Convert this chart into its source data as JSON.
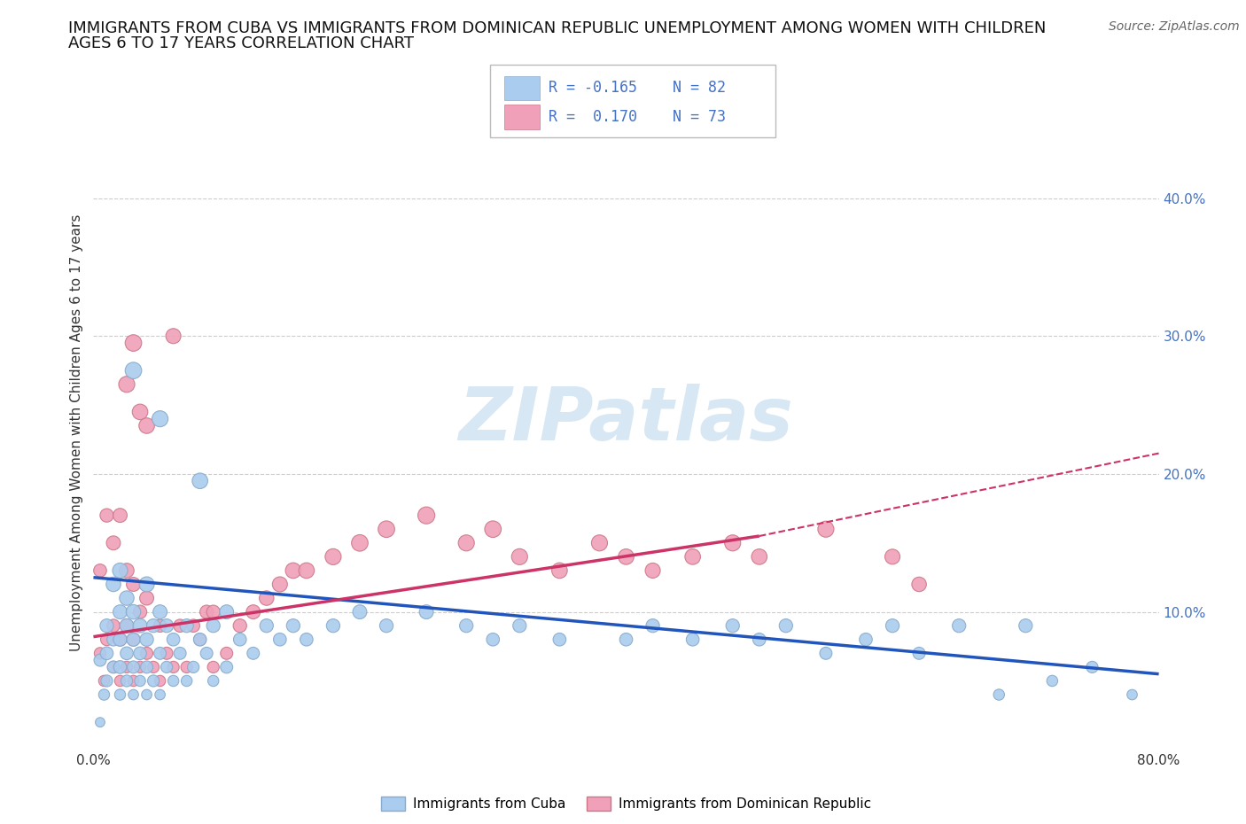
{
  "title_line1": "IMMIGRANTS FROM CUBA VS IMMIGRANTS FROM DOMINICAN REPUBLIC UNEMPLOYMENT AMONG WOMEN WITH CHILDREN",
  "title_line2": "AGES 6 TO 17 YEARS CORRELATION CHART",
  "source_text": "Source: ZipAtlas.com",
  "ylabel": "Unemployment Among Women with Children Ages 6 to 17 years",
  "xlim": [
    0.0,
    0.8
  ],
  "ylim": [
    0.0,
    0.46
  ],
  "xticks": [
    0.0,
    0.1,
    0.2,
    0.3,
    0.4,
    0.5,
    0.6,
    0.7,
    0.8
  ],
  "xticklabels": [
    "0.0%",
    "",
    "",
    "",
    "",
    "",
    "",
    "",
    "80.0%"
  ],
  "yticks_right": [
    0.1,
    0.2,
    0.3,
    0.4
  ],
  "ytick_labels_right": [
    "10.0%",
    "20.0%",
    "30.0%",
    "40.0%"
  ],
  "grid_color": "#cccccc",
  "background_color": "#ffffff",
  "watermark_text": "ZIPatlas",
  "cuba_color": "#aaccee",
  "cuba_color_edge": "#88aacc",
  "dr_color": "#f0a0b8",
  "dr_color_edge": "#cc7788",
  "cuba_line_color": "#2255bb",
  "dr_line_color": "#cc3366",
  "cuba_reg": [
    0.0,
    0.8,
    0.125,
    0.055
  ],
  "dr_reg_solid": [
    0.0,
    0.5,
    0.082,
    0.155
  ],
  "dr_reg_dash": [
    0.5,
    0.8,
    0.155,
    0.215
  ],
  "cuba_scatter_x": [
    0.005,
    0.005,
    0.008,
    0.01,
    0.01,
    0.01,
    0.015,
    0.015,
    0.015,
    0.02,
    0.02,
    0.02,
    0.02,
    0.02,
    0.025,
    0.025,
    0.025,
    0.025,
    0.03,
    0.03,
    0.03,
    0.03,
    0.035,
    0.035,
    0.035,
    0.04,
    0.04,
    0.04,
    0.04,
    0.045,
    0.045,
    0.05,
    0.05,
    0.05,
    0.055,
    0.055,
    0.06,
    0.06,
    0.065,
    0.07,
    0.07,
    0.075,
    0.08,
    0.085,
    0.09,
    0.09,
    0.1,
    0.1,
    0.11,
    0.12,
    0.13,
    0.14,
    0.15,
    0.16,
    0.18,
    0.2,
    0.22,
    0.25,
    0.28,
    0.3,
    0.32,
    0.35,
    0.4,
    0.42,
    0.45,
    0.48,
    0.5,
    0.52,
    0.55,
    0.58,
    0.6,
    0.62,
    0.65,
    0.68,
    0.7,
    0.72,
    0.75,
    0.78,
    0.03,
    0.05,
    0.08
  ],
  "cuba_scatter_y": [
    0.065,
    0.02,
    0.04,
    0.07,
    0.09,
    0.05,
    0.06,
    0.08,
    0.12,
    0.04,
    0.06,
    0.08,
    0.1,
    0.13,
    0.05,
    0.07,
    0.09,
    0.11,
    0.04,
    0.06,
    0.08,
    0.1,
    0.05,
    0.07,
    0.09,
    0.04,
    0.06,
    0.08,
    0.12,
    0.05,
    0.09,
    0.04,
    0.07,
    0.1,
    0.06,
    0.09,
    0.05,
    0.08,
    0.07,
    0.05,
    0.09,
    0.06,
    0.08,
    0.07,
    0.05,
    0.09,
    0.06,
    0.1,
    0.08,
    0.07,
    0.09,
    0.08,
    0.09,
    0.08,
    0.09,
    0.1,
    0.09,
    0.1,
    0.09,
    0.08,
    0.09,
    0.08,
    0.08,
    0.09,
    0.08,
    0.09,
    0.08,
    0.09,
    0.07,
    0.08,
    0.09,
    0.07,
    0.09,
    0.04,
    0.09,
    0.05,
    0.06,
    0.04,
    0.275,
    0.24,
    0.195
  ],
  "cuba_scatter_size": [
    50,
    30,
    40,
    55,
    60,
    45,
    50,
    55,
    70,
    40,
    55,
    60,
    65,
    75,
    45,
    55,
    65,
    70,
    35,
    50,
    60,
    70,
    40,
    55,
    65,
    35,
    50,
    60,
    75,
    45,
    60,
    35,
    50,
    65,
    45,
    60,
    40,
    55,
    50,
    40,
    60,
    45,
    55,
    50,
    40,
    60,
    50,
    65,
    55,
    50,
    60,
    55,
    60,
    55,
    60,
    65,
    60,
    65,
    60,
    55,
    60,
    55,
    55,
    60,
    55,
    60,
    55,
    60,
    50,
    55,
    60,
    50,
    60,
    40,
    60,
    40,
    45,
    35,
    90,
    85,
    80
  ],
  "dr_scatter_x": [
    0.005,
    0.005,
    0.008,
    0.01,
    0.01,
    0.015,
    0.015,
    0.015,
    0.02,
    0.02,
    0.02,
    0.025,
    0.025,
    0.025,
    0.025,
    0.03,
    0.03,
    0.03,
    0.03,
    0.035,
    0.035,
    0.035,
    0.04,
    0.04,
    0.04,
    0.045,
    0.05,
    0.05,
    0.055,
    0.06,
    0.06,
    0.065,
    0.07,
    0.075,
    0.08,
    0.085,
    0.09,
    0.09,
    0.1,
    0.11,
    0.12,
    0.13,
    0.14,
    0.15,
    0.16,
    0.18,
    0.2,
    0.22,
    0.25,
    0.28,
    0.3,
    0.32,
    0.35,
    0.38,
    0.4,
    0.42,
    0.45,
    0.48,
    0.5,
    0.55,
    0.6,
    0.62
  ],
  "dr_scatter_y": [
    0.07,
    0.13,
    0.05,
    0.08,
    0.17,
    0.06,
    0.09,
    0.15,
    0.05,
    0.08,
    0.17,
    0.06,
    0.09,
    0.13,
    0.265,
    0.05,
    0.08,
    0.12,
    0.295,
    0.06,
    0.1,
    0.245,
    0.07,
    0.11,
    0.235,
    0.06,
    0.05,
    0.09,
    0.07,
    0.06,
    0.3,
    0.09,
    0.06,
    0.09,
    0.08,
    0.1,
    0.06,
    0.1,
    0.07,
    0.09,
    0.1,
    0.11,
    0.12,
    0.13,
    0.13,
    0.14,
    0.15,
    0.16,
    0.17,
    0.15,
    0.16,
    0.14,
    0.13,
    0.15,
    0.14,
    0.13,
    0.14,
    0.15,
    0.14,
    0.16,
    0.14,
    0.12
  ],
  "dr_scatter_size": [
    45,
    55,
    40,
    50,
    60,
    45,
    55,
    65,
    40,
    55,
    65,
    45,
    60,
    70,
    85,
    40,
    55,
    65,
    90,
    45,
    60,
    80,
    50,
    65,
    80,
    45,
    40,
    55,
    50,
    45,
    75,
    55,
    45,
    55,
    50,
    60,
    45,
    60,
    50,
    60,
    65,
    70,
    75,
    80,
    80,
    85,
    90,
    90,
    95,
    85,
    90,
    85,
    80,
    85,
    80,
    75,
    80,
    85,
    80,
    85,
    75,
    70
  ]
}
